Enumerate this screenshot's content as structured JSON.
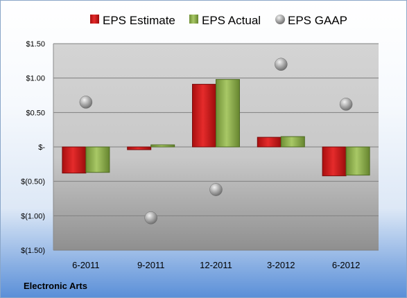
{
  "company_label": "Electronic Arts",
  "colors": {
    "estimate": "#cc1f1f",
    "actual": "#8db04a",
    "gaap": "#a9a9a9"
  },
  "chart_data": {
    "type": "bar",
    "categories": [
      "6-2011",
      "9-2011",
      "12-2011",
      "3-2012",
      "6-2012"
    ],
    "series": [
      {
        "name": "EPS Estimate",
        "kind": "bar",
        "values": [
          -0.38,
          -0.04,
          0.91,
          0.14,
          -0.42
        ]
      },
      {
        "name": "EPS Actual",
        "kind": "bar",
        "values": [
          -0.37,
          0.03,
          0.98,
          0.15,
          -0.41
        ]
      },
      {
        "name": "EPS GAAP",
        "kind": "scatter",
        "values": [
          0.65,
          -1.03,
          -0.62,
          1.2,
          0.62
        ]
      }
    ],
    "ylim": [
      -1.5,
      1.5
    ],
    "yticks": [
      1.5,
      1.0,
      0.5,
      0,
      -0.5,
      -1.0,
      -1.5
    ],
    "ytick_labels": [
      "$1.50",
      "$1.00",
      "$0.50",
      "$-",
      "$(0.50)",
      "$(1.00)",
      "$(1.50)"
    ],
    "grid": true,
    "legend_position": "top"
  }
}
